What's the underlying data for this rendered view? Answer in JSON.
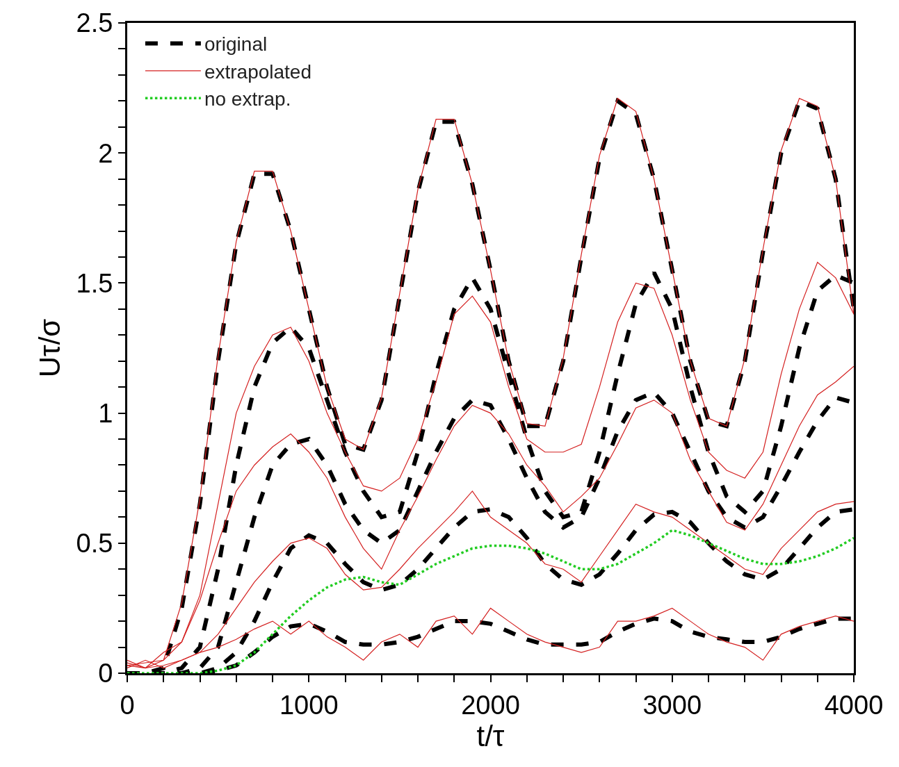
{
  "chart_data": {
    "type": "line",
    "xlabel": "t/τ",
    "ylabel": "Uτ/σ",
    "x": [
      0,
      100,
      200,
      300,
      400,
      500,
      600,
      700,
      800,
      900,
      1000,
      1100,
      1200,
      1300,
      1400,
      1500,
      1600,
      1700,
      1800,
      1900,
      2000,
      2100,
      2200,
      2300,
      2400,
      2500,
      2600,
      2700,
      2800,
      2900,
      3000,
      3100,
      3200,
      3300,
      3400,
      3500,
      3600,
      3700,
      3800,
      3900,
      4000
    ],
    "xlim": [
      0,
      4000
    ],
    "ylim": [
      0,
      2.5
    ],
    "xticks": [
      0,
      {
        "value": 200,
        "label": null
      },
      {
        "value": 400,
        "label": null
      },
      {
        "value": 600,
        "label": null
      },
      {
        "value": 800,
        "label": null
      },
      1000,
      {
        "value": 1200,
        "label": null
      },
      {
        "value": 1400,
        "label": null
      },
      {
        "value": 1600,
        "label": null
      },
      {
        "value": 1800,
        "label": null
      },
      2000,
      {
        "value": 2200,
        "label": null
      },
      {
        "value": 2400,
        "label": null
      },
      {
        "value": 2600,
        "label": null
      },
      {
        "value": 2800,
        "label": null
      },
      3000,
      {
        "value": 3200,
        "label": null
      },
      {
        "value": 3400,
        "label": null
      },
      {
        "value": 3600,
        "label": null
      },
      {
        "value": 3800,
        "label": null
      },
      4000
    ],
    "yticks": [
      0,
      {
        "value": 0.1,
        "label": null
      },
      {
        "value": 0.2,
        "label": null
      },
      {
        "value": 0.3,
        "label": null
      },
      {
        "value": 0.4,
        "label": null
      },
      0.5,
      {
        "value": 0.6,
        "label": null
      },
      {
        "value": 0.7,
        "label": null
      },
      {
        "value": 0.8,
        "label": null
      },
      {
        "value": 0.9,
        "label": null
      },
      1,
      {
        "value": 1.1,
        "label": null
      },
      {
        "value": 1.2,
        "label": null
      },
      {
        "value": 1.3,
        "label": null
      },
      {
        "value": 1.4,
        "label": null
      },
      1.5,
      {
        "value": 1.6,
        "label": null
      },
      {
        "value": 1.7,
        "label": null
      },
      {
        "value": 1.8,
        "label": null
      },
      {
        "value": 1.9,
        "label": null
      },
      2,
      {
        "value": 2.1,
        "label": null
      },
      {
        "value": 2.2,
        "label": null
      },
      {
        "value": 2.3,
        "label": null
      },
      {
        "value": 2.4,
        "label": null
      },
      2.5
    ],
    "legend": "top left",
    "marker": "none",
    "series": [
      {
        "name": "original",
        "color": "#000000",
        "line_style": "dashed",
        "values": [
          0,
          0,
          0.02,
          0.25,
          0.65,
          1.2,
          1.65,
          1.92,
          1.92,
          1.7,
          1.4,
          1.1,
          0.88,
          0.86,
          1.05,
          1.45,
          1.85,
          2.12,
          2.12,
          1.88,
          1.55,
          1.2,
          0.95,
          0.95,
          1.2,
          1.6,
          1.98,
          2.2,
          2.15,
          1.9,
          1.55,
          1.2,
          0.97,
          0.95,
          1.2,
          1.62,
          2.0,
          2.2,
          2.17,
          1.9,
          1.4
        ]
      },
      {
        "color": "#000000",
        "line_style": "dashed",
        "values": [
          0,
          0,
          0,
          0.02,
          0.1,
          0.4,
          0.8,
          1.1,
          1.27,
          1.33,
          1.25,
          1.05,
          0.85,
          0.7,
          0.6,
          0.62,
          0.85,
          1.15,
          1.4,
          1.52,
          1.4,
          1.15,
          0.9,
          0.7,
          0.6,
          0.62,
          0.85,
          1.15,
          1.42,
          1.54,
          1.4,
          1.1,
          0.85,
          0.68,
          0.62,
          0.7,
          0.95,
          1.25,
          1.47,
          1.53,
          1.5
        ]
      },
      {
        "color": "#000000",
        "line_style": "dashed",
        "values": [
          0,
          0,
          0,
          0,
          0.02,
          0.1,
          0.35,
          0.6,
          0.8,
          0.88,
          0.9,
          0.8,
          0.65,
          0.55,
          0.5,
          0.55,
          0.7,
          0.85,
          0.98,
          1.05,
          1.03,
          0.9,
          0.75,
          0.62,
          0.56,
          0.6,
          0.75,
          0.93,
          1.05,
          1.08,
          1.0,
          0.85,
          0.7,
          0.6,
          0.56,
          0.6,
          0.72,
          0.85,
          0.97,
          1.06,
          1.04
        ]
      },
      {
        "color": "#000000",
        "line_style": "dashed",
        "values": [
          0,
          0,
          0,
          0,
          0,
          0.02,
          0.08,
          0.2,
          0.35,
          0.48,
          0.53,
          0.5,
          0.42,
          0.35,
          0.32,
          0.34,
          0.4,
          0.48,
          0.56,
          0.62,
          0.63,
          0.6,
          0.52,
          0.42,
          0.36,
          0.34,
          0.38,
          0.46,
          0.55,
          0.61,
          0.62,
          0.58,
          0.5,
          0.43,
          0.38,
          0.36,
          0.4,
          0.48,
          0.56,
          0.62,
          0.63
        ]
      },
      {
        "color": "#000000",
        "line_style": "dashed",
        "values": [
          0,
          0,
          0,
          0,
          0,
          0.01,
          0.03,
          0.08,
          0.14,
          0.18,
          0.19,
          0.16,
          0.12,
          0.11,
          0.11,
          0.12,
          0.14,
          0.17,
          0.2,
          0.2,
          0.19,
          0.16,
          0.13,
          0.11,
          0.11,
          0.11,
          0.12,
          0.16,
          0.19,
          0.21,
          0.2,
          0.16,
          0.14,
          0.13,
          0.12,
          0.12,
          0.14,
          0.17,
          0.19,
          0.21,
          0.21
        ]
      },
      {
        "name": "extrapolated",
        "color": "#d42020",
        "line_style": "solid",
        "values": [
          0.03,
          0.02,
          0.05,
          0.27,
          0.67,
          1.22,
          1.66,
          1.93,
          1.93,
          1.7,
          1.4,
          1.1,
          0.9,
          0.86,
          1.06,
          1.46,
          1.86,
          2.13,
          2.13,
          1.88,
          1.55,
          1.2,
          0.96,
          0.95,
          1.21,
          1.61,
          1.99,
          2.21,
          2.16,
          1.9,
          1.55,
          1.2,
          0.98,
          0.95,
          1.21,
          1.63,
          2.01,
          2.21,
          2.18,
          1.9,
          1.38
        ]
      },
      {
        "color": "#d42020",
        "line_style": "solid",
        "values": [
          0.05,
          0.02,
          0.08,
          0.12,
          0.3,
          0.65,
          1.0,
          1.18,
          1.3,
          1.33,
          1.2,
          1.0,
          0.85,
          0.72,
          0.7,
          0.75,
          0.9,
          1.12,
          1.38,
          1.45,
          1.35,
          1.1,
          0.9,
          0.85,
          0.85,
          0.88,
          1.1,
          1.35,
          1.5,
          1.48,
          1.3,
          1.05,
          0.85,
          0.78,
          0.75,
          0.85,
          1.15,
          1.4,
          1.58,
          1.52,
          1.38
        ]
      },
      {
        "color": "#d42020",
        "line_style": "solid",
        "values": [
          0.03,
          0.04,
          0.05,
          0.12,
          0.28,
          0.5,
          0.7,
          0.8,
          0.87,
          0.92,
          0.85,
          0.75,
          0.6,
          0.48,
          0.4,
          0.55,
          0.68,
          0.82,
          0.95,
          1.03,
          1.0,
          0.92,
          0.8,
          0.72,
          0.62,
          0.68,
          0.75,
          0.88,
          1.02,
          1.05,
          1.0,
          0.82,
          0.7,
          0.58,
          0.55,
          0.65,
          0.8,
          0.95,
          1.07,
          1.12,
          1.18
        ]
      },
      {
        "color": "#d42020",
        "line_style": "solid",
        "values": [
          0.02,
          0.05,
          0.02,
          0.05,
          0.08,
          0.15,
          0.25,
          0.35,
          0.43,
          0.5,
          0.52,
          0.48,
          0.38,
          0.32,
          0.33,
          0.4,
          0.48,
          0.55,
          0.62,
          0.7,
          0.6,
          0.55,
          0.5,
          0.42,
          0.4,
          0.35,
          0.45,
          0.55,
          0.65,
          0.62,
          0.6,
          0.55,
          0.5,
          0.45,
          0.4,
          0.38,
          0.48,
          0.55,
          0.62,
          0.65,
          0.66
        ]
      },
      {
        "color": "#d42020",
        "line_style": "solid",
        "values": [
          0.04,
          0.02,
          0.03,
          0.05,
          0.08,
          0.1,
          0.13,
          0.17,
          0.2,
          0.15,
          0.2,
          0.14,
          0.1,
          0.05,
          0.12,
          0.15,
          0.1,
          0.2,
          0.22,
          0.15,
          0.25,
          0.2,
          0.15,
          0.12,
          0.1,
          0.08,
          0.1,
          0.2,
          0.2,
          0.22,
          0.25,
          0.2,
          0.15,
          0.12,
          0.1,
          0.05,
          0.15,
          0.18,
          0.2,
          0.22,
          0.2
        ]
      },
      {
        "name": "no extrap.",
        "color": "#22cc22",
        "line_style": "dotted",
        "values": [
          0,
          0,
          0,
          0,
          0,
          0.01,
          0.03,
          0.08,
          0.15,
          0.22,
          0.28,
          0.33,
          0.36,
          0.37,
          0.35,
          0.34,
          0.38,
          0.42,
          0.45,
          0.48,
          0.49,
          0.49,
          0.48,
          0.46,
          0.43,
          0.4,
          0.4,
          0.42,
          0.46,
          0.5,
          0.55,
          0.53,
          0.5,
          0.47,
          0.44,
          0.42,
          0.42,
          0.43,
          0.45,
          0.48,
          0.52
        ]
      }
    ]
  }
}
